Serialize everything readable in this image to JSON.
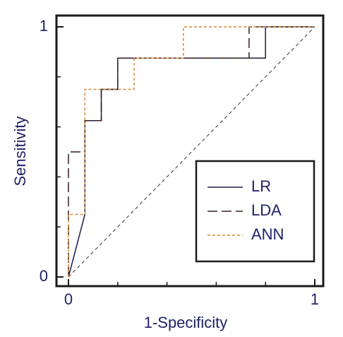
{
  "chart_data": {
    "type": "line",
    "xlabel": "1-Specificity",
    "ylabel": "Sensitivity",
    "xlim": [
      0,
      1
    ],
    "ylim": [
      0,
      1
    ],
    "xticks": [
      0,
      1
    ],
    "yticks": [
      0,
      1
    ],
    "minor_ticks": [
      0.2,
      0.4,
      0.6,
      0.8
    ],
    "diagonal": true,
    "legend": "lower right",
    "series": [
      {
        "name": "LR",
        "color": "#1c1f4a",
        "dash": "solid",
        "x": [
          0,
          0.0667,
          0.0667,
          0.1333,
          0.1333,
          0.2,
          0.2,
          0.8,
          0.8,
          1
        ],
        "y": [
          0,
          0.25,
          0.625,
          0.625,
          0.75,
          0.75,
          0.875,
          0.875,
          1,
          1
        ]
      },
      {
        "name": "LDA",
        "color": "#3a1a1a",
        "dash": "dashed",
        "x": [
          0,
          0,
          0.0667,
          0.0667,
          0.1333,
          0.1333,
          0.2,
          0.2,
          0.7333,
          0.7333,
          1
        ],
        "y": [
          0,
          0.5,
          0.5,
          0.625,
          0.625,
          0.75,
          0.75,
          0.875,
          0.875,
          1,
          1
        ]
      },
      {
        "name": "ANN",
        "color": "#d38a35",
        "dash": "dotted",
        "x": [
          0,
          0,
          0.0667,
          0.0667,
          0.2667,
          0.2667,
          0.4667,
          0.4667,
          1
        ],
        "y": [
          0,
          0.25,
          0.25,
          0.75,
          0.75,
          0.875,
          0.875,
          1,
          1
        ]
      }
    ]
  }
}
